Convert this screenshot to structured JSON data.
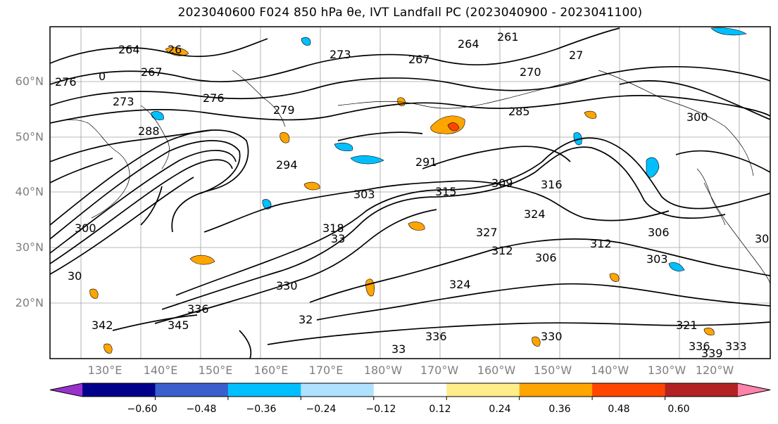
{
  "title": "2023040600 F024 850 hPa θe, IVT Landfall PC (2023040900 - 2023041100)",
  "map": {
    "lat_labels": [
      "60°N",
      "50°N",
      "40°N",
      "30°N",
      "20°N"
    ],
    "lon_labels": [
      "130°E",
      "140°E",
      "150°E",
      "160°E",
      "170°E",
      "180°W",
      "170°W",
      "160°W",
      "150°W",
      "140°W",
      "130°W",
      "120°W"
    ]
  },
  "contour_labels": [
    {
      "text": "264"
    },
    {
      "text": "26"
    },
    {
      "text": "267"
    },
    {
      "text": "276"
    },
    {
      "text": "0"
    },
    {
      "text": "273"
    },
    {
      "text": "276"
    },
    {
      "text": "279"
    },
    {
      "text": "288"
    },
    {
      "text": "273"
    },
    {
      "text": "267"
    },
    {
      "text": "264"
    },
    {
      "text": "261"
    },
    {
      "text": "270"
    },
    {
      "text": "27"
    },
    {
      "text": "285"
    },
    {
      "text": "300"
    },
    {
      "text": "291"
    },
    {
      "text": "294"
    },
    {
      "text": "303"
    },
    {
      "text": "315"
    },
    {
      "text": "309"
    },
    {
      "text": "316"
    },
    {
      "text": "324"
    },
    {
      "text": "306"
    },
    {
      "text": "300"
    },
    {
      "text": "33"
    },
    {
      "text": "327"
    },
    {
      "text": "312"
    },
    {
      "text": "306"
    },
    {
      "text": "312"
    },
    {
      "text": "303"
    },
    {
      "text": "306"
    },
    {
      "text": "30"
    },
    {
      "text": "324"
    },
    {
      "text": "330"
    },
    {
      "text": "336"
    },
    {
      "text": "342"
    },
    {
      "text": "345"
    },
    {
      "text": "32"
    },
    {
      "text": "336"
    },
    {
      "text": "33"
    },
    {
      "text": "330"
    },
    {
      "text": "321"
    },
    {
      "text": "336"
    },
    {
      "text": "333"
    },
    {
      "text": "339"
    },
    {
      "text": "318"
    }
  ],
  "colorbar": {
    "ticks": [
      "−0.60",
      "−0.48",
      "−0.36",
      "−0.24",
      "−0.12",
      "0.12",
      "0.24",
      "0.36",
      "0.48",
      "0.60"
    ],
    "colors": [
      "#9932cc",
      "#00008b",
      "#3a5fcd",
      "#00bfff",
      "#b0e2ff",
      "#ffffff",
      "#ffec8b",
      "#ffa500",
      "#ff4500",
      "#b22222",
      "#ff82ab"
    ]
  }
}
